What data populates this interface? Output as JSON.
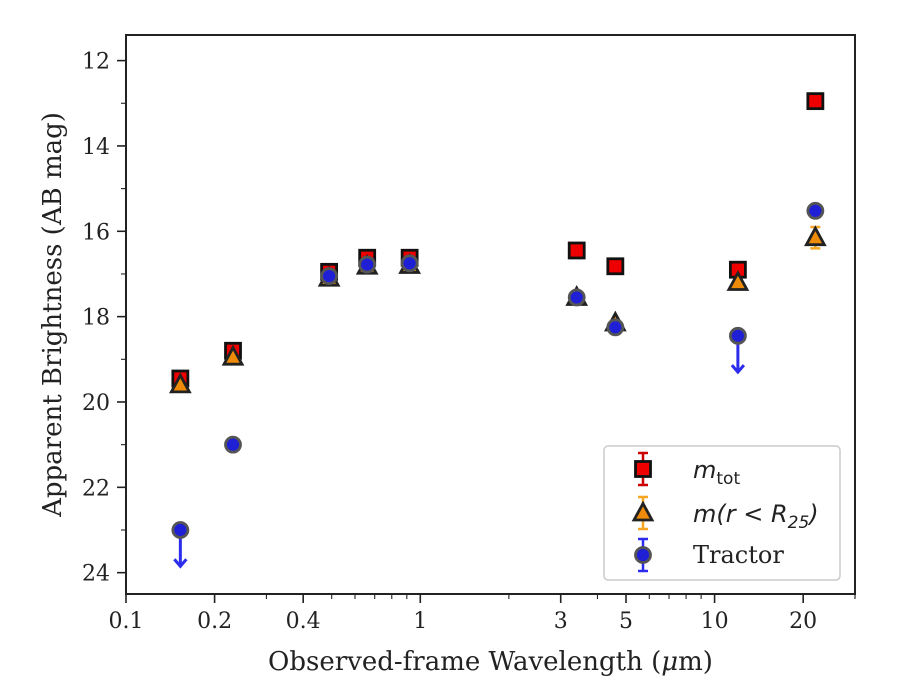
{
  "chart_data": {
    "type": "scatter",
    "title": "",
    "xlabel_prefix": "Observed-frame Wavelength (",
    "xlabel_mu": "μ",
    "xlabel_suffix": "m)",
    "ylabel": "Apparent Brightness (AB mag)",
    "xscale": "log",
    "xlim": [
      0.1,
      30
    ],
    "ylim": [
      24.5,
      11.4
    ],
    "y_inverted": true,
    "grid": false,
    "legend_position": "lower-right",
    "x_ticks": [
      {
        "value": 0.1,
        "label": "0.1"
      },
      {
        "value": 0.2,
        "label": "0.2"
      },
      {
        "value": 0.4,
        "label": "0.4"
      },
      {
        "value": 1,
        "label": "1"
      },
      {
        "value": 3,
        "label": "3"
      },
      {
        "value": 5,
        "label": "5"
      },
      {
        "value": 10,
        "label": "10"
      },
      {
        "value": 20,
        "label": "20"
      }
    ],
    "y_ticks": [
      {
        "value": 12,
        "label": "12"
      },
      {
        "value": 14,
        "label": "14"
      },
      {
        "value": 16,
        "label": "16"
      },
      {
        "value": 18,
        "label": "18"
      },
      {
        "value": 20,
        "label": "20"
      },
      {
        "value": 22,
        "label": "22"
      },
      {
        "value": 24,
        "label": "24"
      }
    ],
    "series": [
      {
        "name": "m_tot",
        "legend_main": "m",
        "legend_sub": "tot",
        "marker": "square",
        "face_color": "#ee0000",
        "edge_color": "#111111",
        "error_color": "#cc0000",
        "points": [
          {
            "x": 0.153,
            "y": 19.45
          },
          {
            "x": 0.231,
            "y": 18.8
          },
          {
            "x": 0.49,
            "y": 16.95
          },
          {
            "x": 0.66,
            "y": 16.62
          },
          {
            "x": 0.92,
            "y": 16.62
          },
          {
            "x": 3.4,
            "y": 16.45
          },
          {
            "x": 4.6,
            "y": 16.82
          },
          {
            "x": 12.0,
            "y": 16.9
          },
          {
            "x": 22.0,
            "y": 12.95
          }
        ]
      },
      {
        "name": "m(r < R_25)",
        "legend_main": "m(r < R",
        "legend_sub": "25",
        "legend_end": ")",
        "marker": "triangle",
        "face_color": "#ee8c0a",
        "edge_color": "#222222",
        "error_color": "#f5a623",
        "points": [
          {
            "x": 0.153,
            "y": 19.6
          },
          {
            "x": 0.231,
            "y": 18.95
          },
          {
            "x": 0.49,
            "y": 17.1
          },
          {
            "x": 0.66,
            "y": 16.82
          },
          {
            "x": 0.92,
            "y": 16.8
          },
          {
            "x": 3.4,
            "y": 17.55
          },
          {
            "x": 4.6,
            "y": 18.15
          },
          {
            "x": 12.0,
            "y": 17.2
          },
          {
            "x": 22.0,
            "y": 16.15,
            "err": 0.25
          }
        ]
      },
      {
        "name": "Tractor",
        "legend_main": "Tractor",
        "marker": "circle",
        "face_color": "#1f1fd6",
        "edge_color": "#555555",
        "error_color": "#2c2cee",
        "points": [
          {
            "x": 0.153,
            "y": 23.0,
            "upper_limit": true
          },
          {
            "x": 0.231,
            "y": 21.0
          },
          {
            "x": 0.49,
            "y": 17.05
          },
          {
            "x": 0.66,
            "y": 16.78
          },
          {
            "x": 0.92,
            "y": 16.75
          },
          {
            "x": 3.4,
            "y": 17.55
          },
          {
            "x": 4.6,
            "y": 18.25
          },
          {
            "x": 12.0,
            "y": 18.45,
            "upper_limit": true
          },
          {
            "x": 22.0,
            "y": 15.52
          }
        ]
      }
    ]
  }
}
